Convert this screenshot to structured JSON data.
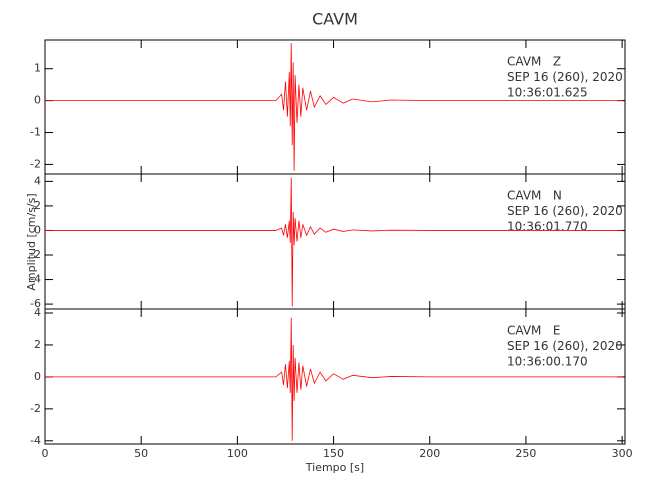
{
  "figure": {
    "title": "CAVM",
    "xlabel": "Tiempo [s]",
    "ylabel": "Amplitud [cm/s/s]"
  },
  "chart_data": [
    {
      "type": "line",
      "annotations": [
        "CAVM   Z",
        "SEP 16 (260), 2020",
        "10:36:01.625"
      ],
      "color": "#ff0000",
      "x": [
        0,
        120,
        123,
        124,
        125,
        126,
        127,
        127.5,
        128,
        128.5,
        129,
        129.5,
        130,
        131,
        132,
        133,
        134,
        136,
        138,
        140,
        143,
        146,
        150,
        155,
        160,
        170,
        180,
        200,
        300
      ],
      "values": [
        0,
        0,
        0.2,
        -0.3,
        0.6,
        -0.5,
        0.9,
        -0.8,
        1.8,
        -1.4,
        1.2,
        -2.2,
        0.8,
        -0.7,
        0.5,
        -0.5,
        0.4,
        -0.3,
        0.3,
        -0.2,
        0.15,
        -0.12,
        0.1,
        -0.08,
        0.05,
        -0.04,
        0.02,
        0,
        0
      ],
      "xlim": [
        0,
        301.5
      ],
      "xticks": [
        0,
        50,
        100,
        150,
        200,
        250,
        300
      ],
      "ylim": [
        -2.3,
        1.9
      ],
      "yticks": [
        -2,
        -1,
        0,
        1
      ]
    },
    {
      "type": "line",
      "annotations": [
        "CAVM   N",
        "SEP 16 (260), 2020",
        "10:36:01.770"
      ],
      "color": "#ff0000",
      "x": [
        0,
        120,
        123,
        124,
        125,
        126,
        127,
        127.5,
        128,
        128.5,
        129,
        129.5,
        130,
        131,
        132,
        133,
        134,
        136,
        138,
        140,
        143,
        146,
        150,
        155,
        160,
        170,
        180,
        200,
        300
      ],
      "values": [
        0,
        0,
        0.2,
        -0.4,
        0.5,
        -0.6,
        0.8,
        -1,
        4.3,
        -6.2,
        1.5,
        -1.2,
        1,
        -0.9,
        0.8,
        -0.6,
        0.5,
        -0.4,
        0.3,
        -0.3,
        0.2,
        -0.15,
        0.1,
        -0.08,
        0.05,
        -0.04,
        0.02,
        0,
        0
      ],
      "xlim": [
        0,
        301.5
      ],
      "xticks": [
        0,
        50,
        100,
        150,
        200,
        250,
        300
      ],
      "ylim": [
        -6.4,
        4.6
      ],
      "yticks": [
        -6,
        -4,
        -2,
        0,
        2,
        4
      ]
    },
    {
      "type": "line",
      "annotations": [
        "CAVM   E",
        "SEP 16 (260), 2020",
        "10:36:00.170"
      ],
      "color": "#ff0000",
      "x": [
        0,
        120,
        123,
        124,
        125,
        126,
        127,
        127.5,
        128,
        128.5,
        129,
        129.5,
        130,
        131,
        132,
        133,
        134,
        136,
        138,
        140,
        143,
        146,
        150,
        155,
        160,
        170,
        180,
        200,
        300
      ],
      "values": [
        0,
        0,
        0.3,
        -0.5,
        0.8,
        -0.7,
        1,
        -1,
        3.7,
        -4,
        2,
        -1.5,
        1.2,
        -1,
        0.9,
        -0.8,
        0.7,
        -0.6,
        0.5,
        -0.4,
        0.3,
        -0.25,
        0.2,
        -0.15,
        0.1,
        -0.05,
        0.03,
        0,
        0
      ],
      "xlim": [
        0,
        301.5
      ],
      "xticks": [
        0,
        50,
        100,
        150,
        200,
        250,
        300
      ],
      "ylim": [
        -4.2,
        4.25
      ],
      "yticks": [
        -4,
        -2,
        0,
        2,
        4
      ]
    }
  ]
}
